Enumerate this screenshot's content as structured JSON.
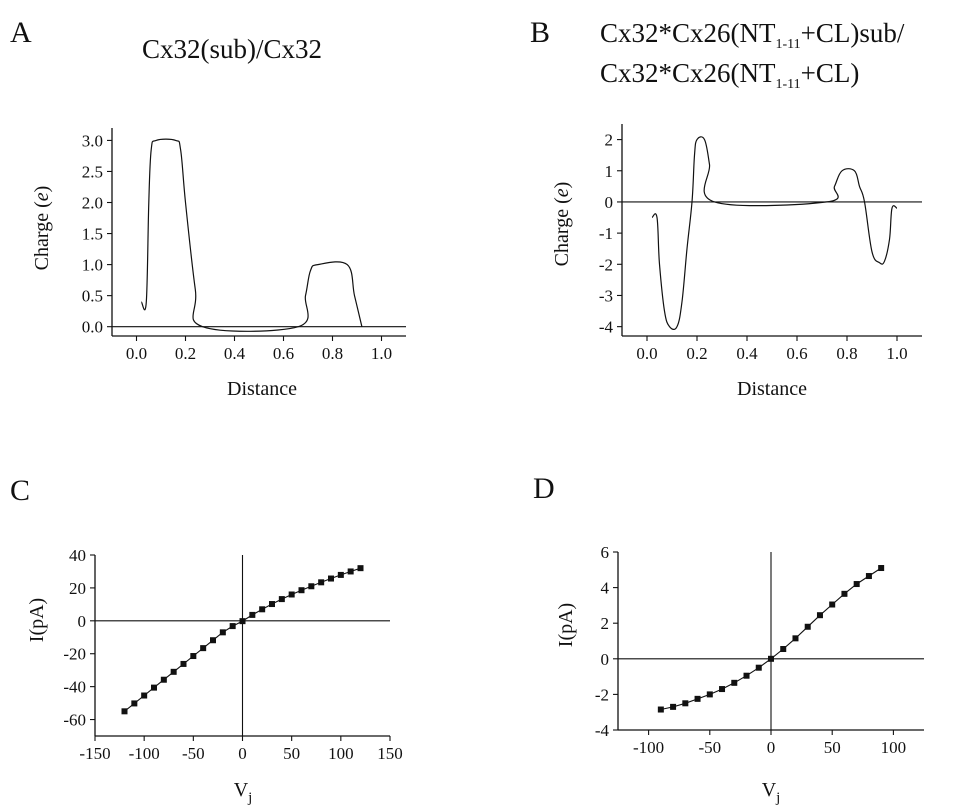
{
  "chart_data": [
    {
      "panel": "A",
      "type": "line",
      "title": "Cx32(sub)/Cx32",
      "xlabel": "Distance",
      "ylabel": "Charge (e)",
      "xlim": [
        -0.1,
        1.1
      ],
      "ylim": [
        -0.15,
        3.2
      ],
      "xticks": [
        "0.0",
        "0.2",
        "0.4",
        "0.6",
        "0.8",
        "1.0"
      ],
      "yticks": [
        "0.0",
        "0.5",
        "1.0",
        "1.5",
        "2.0",
        "2.5",
        "3.0"
      ],
      "x": [
        0.02,
        0.04,
        0.05,
        0.06,
        0.08,
        0.16,
        0.18,
        0.2,
        0.24,
        0.27,
        0.66,
        0.69,
        0.71,
        0.74,
        0.86,
        0.89,
        0.92
      ],
      "y": [
        0.4,
        0.4,
        2.0,
        2.85,
        3.0,
        3.0,
        2.85,
        2.0,
        0.6,
        0.0,
        0.0,
        0.5,
        0.9,
        1.0,
        1.0,
        0.5,
        0.0
      ],
      "zero_line": true
    },
    {
      "panel": "B",
      "type": "line",
      "title_lines": [
        "Cx32*Cx26(NT",
        "+CL)sub/",
        "Cx32*Cx26(NT",
        "+CL)"
      ],
      "title_subscript": "1-11",
      "xlabel": "Distance",
      "ylabel": "Charge (e)",
      "xlim": [
        -0.1,
        1.1
      ],
      "ylim": [
        -4.3,
        2.5
      ],
      "xticks": [
        "0.0",
        "0.2",
        "0.4",
        "0.6",
        "0.8",
        "1.0"
      ],
      "yticks": [
        "-4",
        "-3",
        "-2",
        "-1",
        "0",
        "1",
        "2"
      ],
      "x": [
        0.02,
        0.04,
        0.05,
        0.07,
        0.09,
        0.12,
        0.14,
        0.16,
        0.18,
        0.19,
        0.2,
        0.23,
        0.25,
        0.27,
        0.72,
        0.75,
        0.78,
        0.83,
        0.85,
        0.87,
        0.9,
        0.93,
        0.95,
        0.97,
        0.98,
        1.0
      ],
      "y": [
        -0.5,
        -0.5,
        -2.0,
        -3.5,
        -4.0,
        -4.0,
        -3.2,
        -1.5,
        0.0,
        1.5,
        2.0,
        2.0,
        1.2,
        0.0,
        0.0,
        0.5,
        1.0,
        1.0,
        0.5,
        0.0,
        -1.6,
        -1.95,
        -1.9,
        -1.2,
        -0.2,
        -0.2
      ],
      "zero_line": true
    },
    {
      "panel": "C",
      "type": "line",
      "xlabel": "V",
      "xlabel_subscript": "j",
      "ylabel": "I(pA)",
      "xlim": [
        -150,
        150
      ],
      "ylim": [
        -70,
        40
      ],
      "xticks": [
        "-150",
        "-100",
        "-50",
        "0",
        "50",
        "100",
        "150"
      ],
      "yticks": [
        "-60",
        "-40",
        "-20",
        "0",
        "20",
        "40"
      ],
      "x": [
        -120,
        -110,
        -100,
        -90,
        -80,
        -70,
        -60,
        -50,
        -40,
        -30,
        -20,
        -10,
        0,
        10,
        20,
        30,
        40,
        50,
        60,
        70,
        80,
        90,
        100,
        110,
        120
      ],
      "y": [
        -55,
        -50.2,
        -45.4,
        -40.6,
        -35.8,
        -31,
        -26.2,
        -21.4,
        -16.6,
        -11.8,
        -7,
        -3.2,
        -0.2,
        3.6,
        7,
        10.2,
        13.2,
        16,
        18.6,
        21,
        23.4,
        25.7,
        27.9,
        30,
        32
      ],
      "markers": true
    },
    {
      "panel": "D",
      "type": "line",
      "xlabel": "V",
      "xlabel_subscript": "j",
      "ylabel": "I(pA)",
      "xlim": [
        -125,
        125
      ],
      "ylim": [
        -4,
        6
      ],
      "xticks": [
        "-100",
        "-50",
        "0",
        "50",
        "100"
      ],
      "yticks": [
        "-4",
        "-2",
        "0",
        "2",
        "4",
        "6"
      ],
      "x": [
        -90,
        -80,
        -70,
        -60,
        -50,
        -40,
        -30,
        -20,
        -10,
        0,
        10,
        20,
        30,
        40,
        50,
        60,
        70,
        80,
        90
      ],
      "y": [
        -2.85,
        -2.7,
        -2.5,
        -2.25,
        -2.0,
        -1.7,
        -1.35,
        -0.95,
        -0.5,
        0.0,
        0.55,
        1.15,
        1.8,
        2.45,
        3.05,
        3.65,
        4.2,
        4.65,
        5.1
      ],
      "markers": true
    }
  ]
}
